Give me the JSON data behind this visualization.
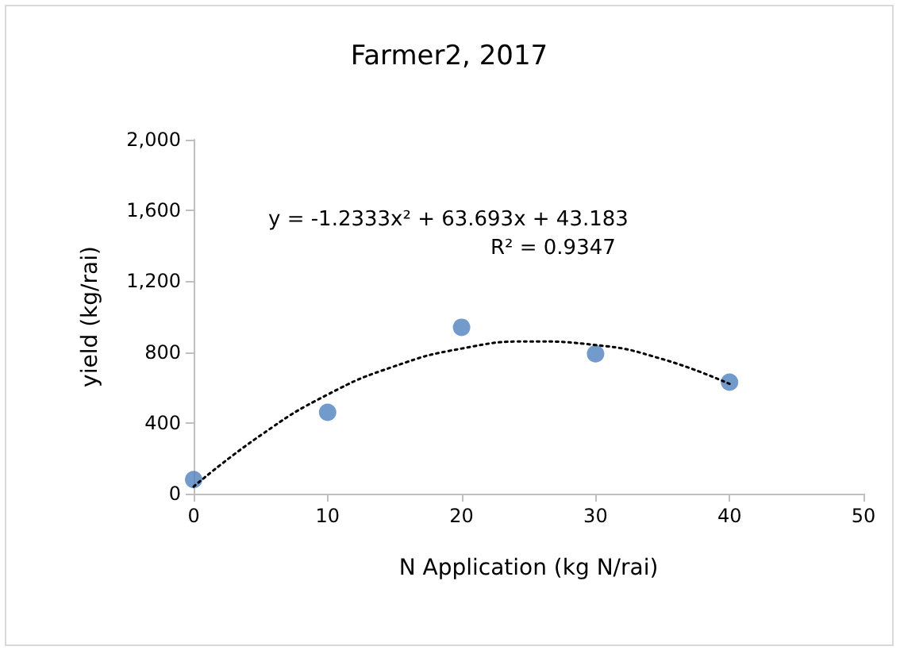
{
  "chart_data": {
    "type": "scatter",
    "title": "Farmer2, 2017",
    "xlabel": "N Application (kg N/rai)",
    "ylabel": "yield (kg/rai)",
    "annotations": [
      "y = -1.2333x² + 63.693x + 43.183",
      "R² = 0.9347"
    ],
    "series": [
      {
        "color": "#4f81bd",
        "x": [
          0,
          10,
          20,
          30,
          40
        ],
        "values": [
          80,
          460,
          940,
          790,
          630
        ],
        "marker": "circle"
      },
      {
        "type": "line",
        "color": "#000000",
        "line_style": "dotted",
        "marker": "none",
        "x": [
          0,
          5,
          10,
          15,
          20,
          25,
          30,
          35,
          40
        ],
        "values": [
          40,
          330,
          560,
          720,
          820,
          860,
          840,
          760,
          620
        ]
      }
    ],
    "xlim": [
      0,
      50
    ],
    "xticks": [
      0,
      10,
      20,
      30,
      40,
      50
    ],
    "ylim": [
      0,
      2000
    ],
    "yticks": [
      0,
      400,
      800,
      {
        "value": 1200,
        "label": "1,200"
      },
      {
        "value": 1600,
        "label": "1,600"
      },
      {
        "value": 2000,
        "label": "2,000"
      }
    ],
    "grid": false
  }
}
